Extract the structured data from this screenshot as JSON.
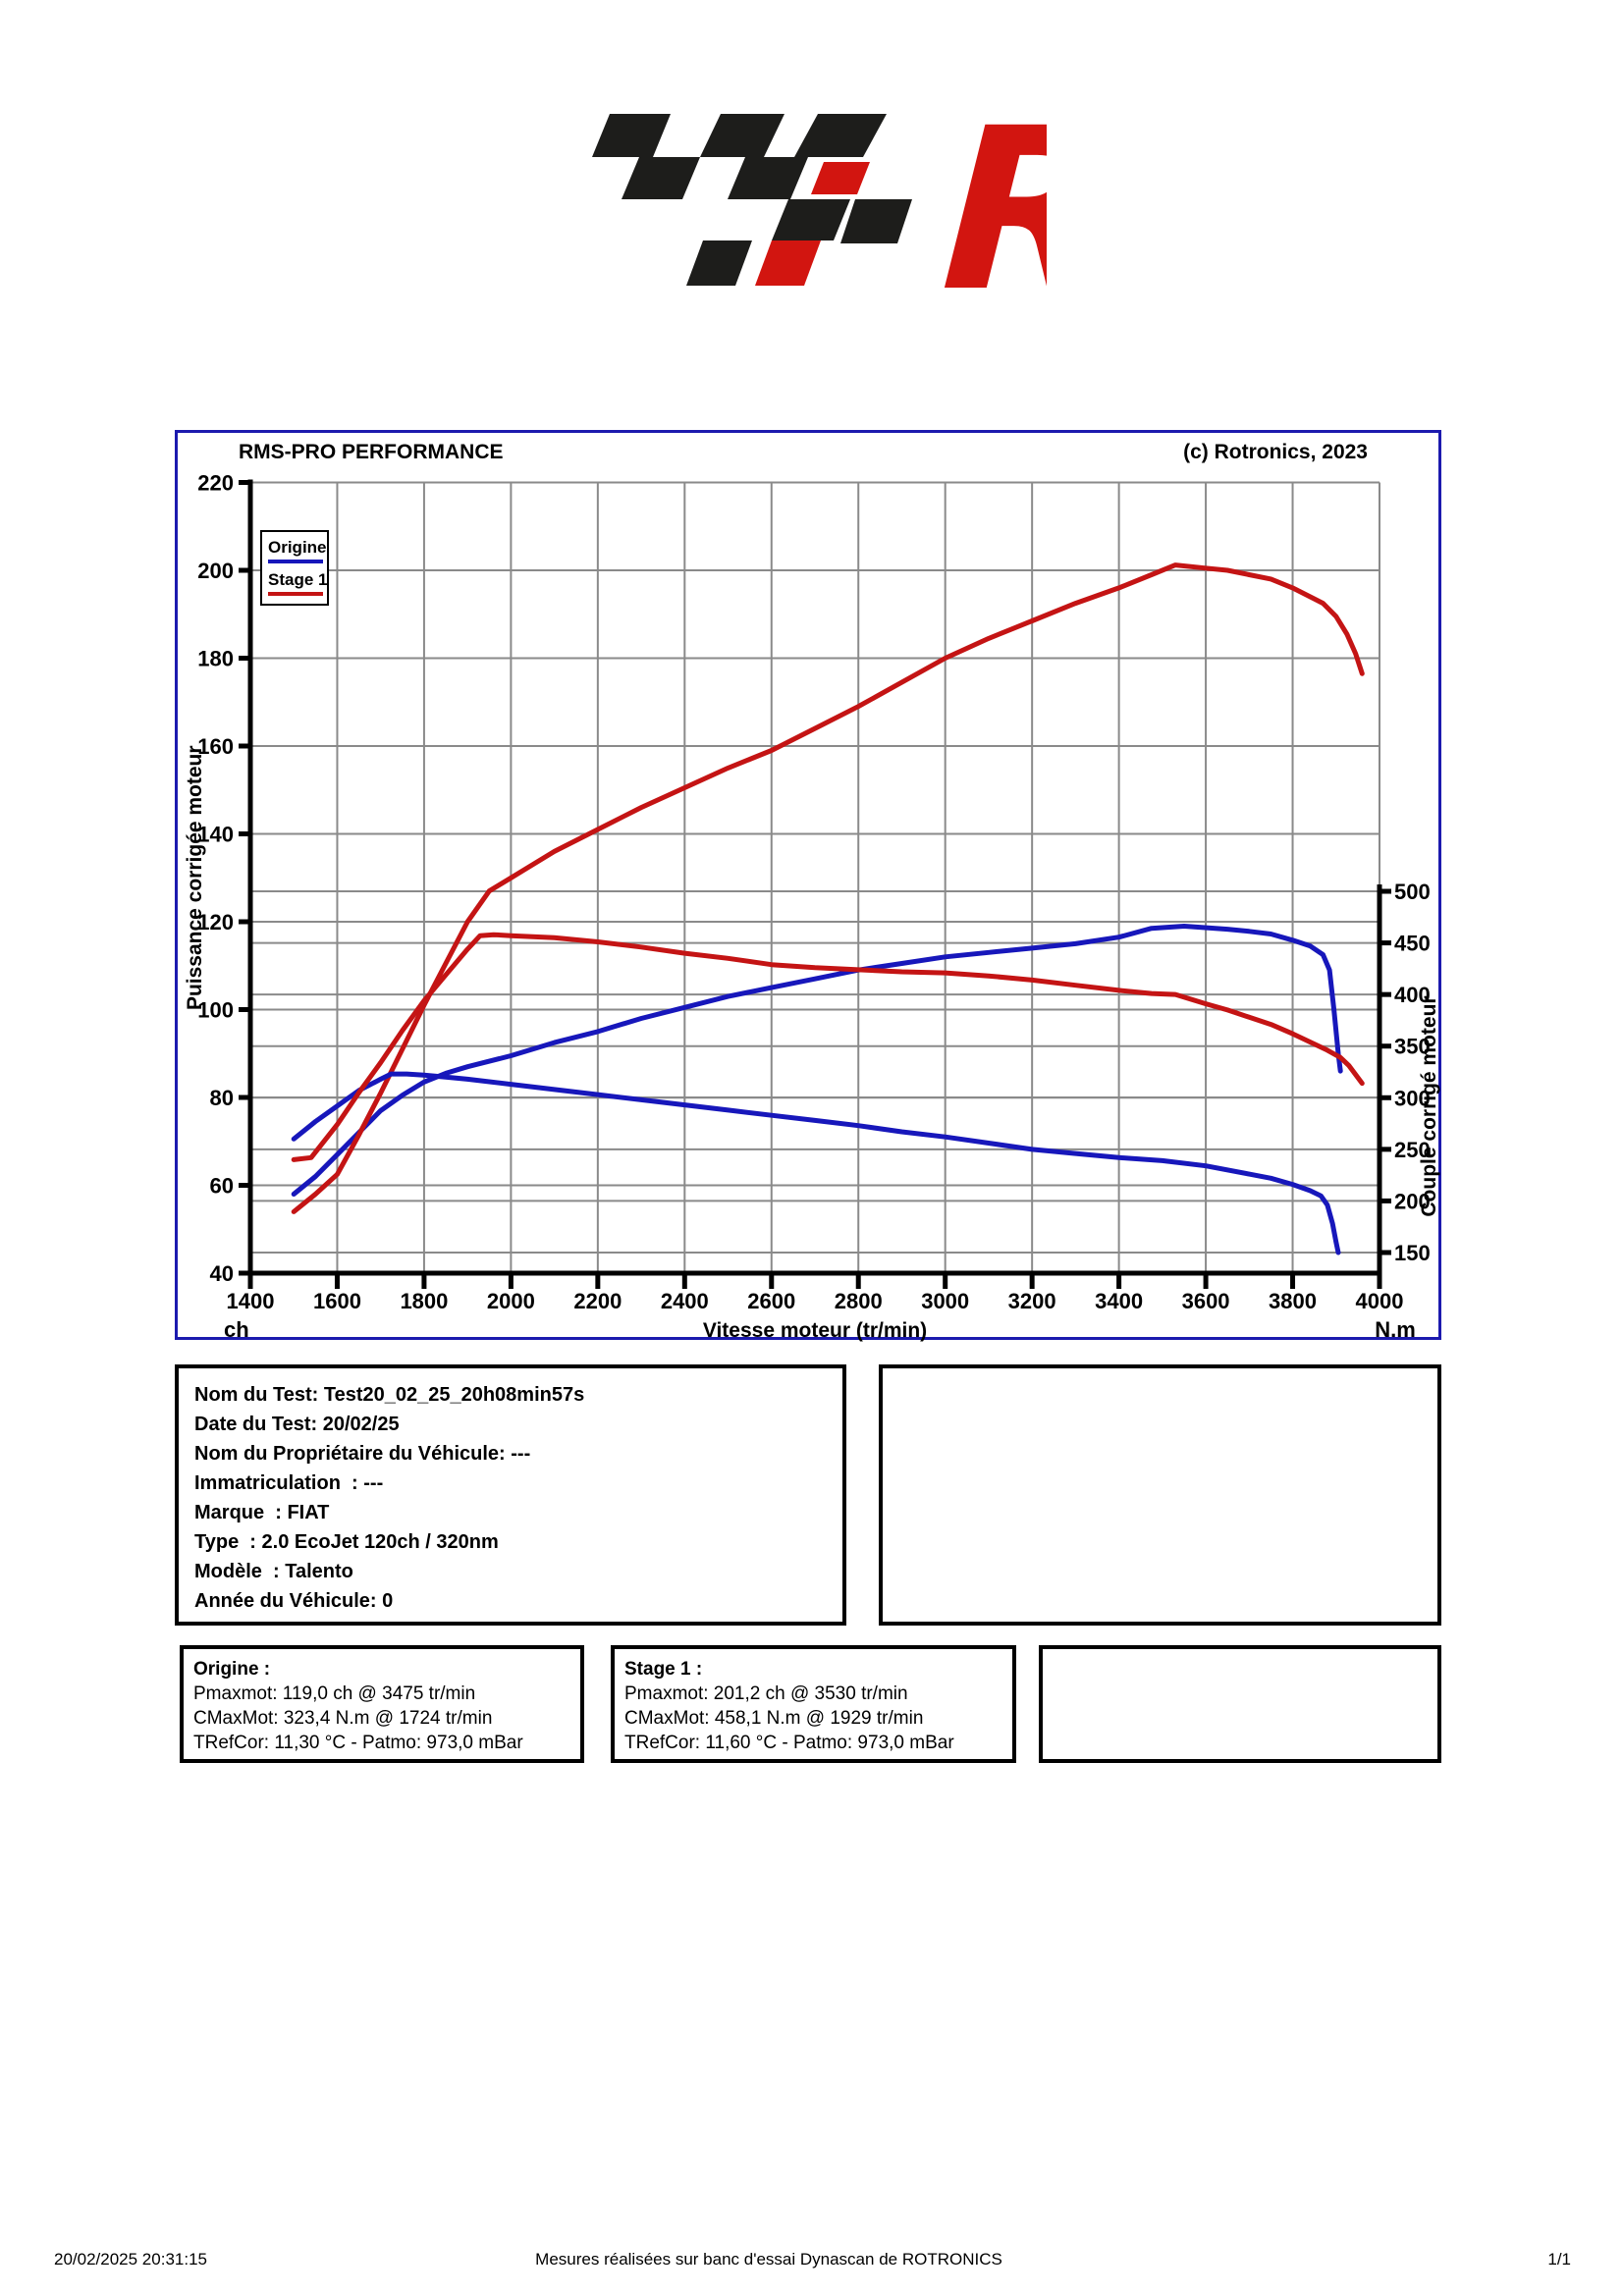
{
  "logo": {
    "name": "rotronics-checkered-flag-logo",
    "black": "#1d1d1b",
    "red": "#d21510"
  },
  "header": {
    "title": "RMS-PRO PERFORMANCE",
    "copyright": "(c) Rotronics, 2023"
  },
  "legend": {
    "entries": [
      {
        "label": "Origine",
        "color": "#1717bb"
      },
      {
        "label": "Stage 1",
        "color": "#c41414"
      }
    ]
  },
  "chart_data": {
    "type": "line",
    "title": "RMS-PRO PERFORMANCE",
    "grid": true,
    "legend_position": "top-left",
    "x": {
      "label": "Vitesse moteur (tr/min)",
      "unit_left_corner": "ch",
      "unit_right_corner": "N.m",
      "min": 1400,
      "max": 4000,
      "step": 200,
      "ticks": [
        1400,
        1600,
        1800,
        2000,
        2200,
        2400,
        2600,
        2800,
        3000,
        3200,
        3400,
        3600,
        3800,
        4000
      ]
    },
    "y_left": {
      "label": "Puissance corrigée moteur",
      "unit": "ch",
      "min": 40,
      "max": 220,
      "step": 20,
      "ticks": [
        220,
        200,
        180,
        160,
        140,
        120,
        100,
        80,
        60,
        40
      ]
    },
    "y_right": {
      "label": "Couple corrigé moteur",
      "unit": "N.m",
      "min": 150,
      "max": 500,
      "step": 50,
      "ticks": [
        500,
        450,
        400,
        350,
        300,
        250,
        200,
        150
      ]
    },
    "series": [
      {
        "name": "Origine - Puissance (ch)",
        "axis": "left",
        "color": "#1717bb",
        "points": [
          [
            1500,
            58
          ],
          [
            1550,
            62
          ],
          [
            1600,
            67
          ],
          [
            1650,
            72
          ],
          [
            1700,
            77
          ],
          [
            1750,
            80.5
          ],
          [
            1800,
            83.5
          ],
          [
            1850,
            85.5
          ],
          [
            1900,
            87
          ],
          [
            2000,
            89.5
          ],
          [
            2100,
            92.5
          ],
          [
            2200,
            95
          ],
          [
            2300,
            98
          ],
          [
            2400,
            100.5
          ],
          [
            2500,
            103
          ],
          [
            2600,
            105
          ],
          [
            2700,
            107
          ],
          [
            2800,
            109
          ],
          [
            2900,
            110.5
          ],
          [
            3000,
            112
          ],
          [
            3100,
            113
          ],
          [
            3200,
            114
          ],
          [
            3300,
            115
          ],
          [
            3400,
            116.5
          ],
          [
            3475,
            118.5
          ],
          [
            3550,
            119
          ],
          [
            3650,
            118.3
          ],
          [
            3700,
            117.8
          ],
          [
            3750,
            117.2
          ],
          [
            3800,
            115.8
          ],
          [
            3840,
            114.5
          ],
          [
            3870,
            112.5
          ],
          [
            3885,
            109
          ],
          [
            3895,
            100
          ],
          [
            3905,
            90
          ],
          [
            3910,
            86
          ]
        ]
      },
      {
        "name": "Stage 1 - Puissance (ch)",
        "axis": "left",
        "color": "#c41414",
        "points": [
          [
            1500,
            54
          ],
          [
            1550,
            58
          ],
          [
            1600,
            62.5
          ],
          [
            1650,
            71.5
          ],
          [
            1700,
            81
          ],
          [
            1750,
            91
          ],
          [
            1800,
            101
          ],
          [
            1850,
            110.5
          ],
          [
            1900,
            120
          ],
          [
            1950,
            127
          ],
          [
            2000,
            130
          ],
          [
            2100,
            136
          ],
          [
            2200,
            141
          ],
          [
            2300,
            146
          ],
          [
            2400,
            150.5
          ],
          [
            2500,
            155
          ],
          [
            2600,
            159
          ],
          [
            2700,
            164
          ],
          [
            2800,
            169
          ],
          [
            2900,
            174.5
          ],
          [
            3000,
            180
          ],
          [
            3100,
            184.5
          ],
          [
            3200,
            188.5
          ],
          [
            3300,
            192.5
          ],
          [
            3400,
            196
          ],
          [
            3475,
            199
          ],
          [
            3530,
            201.2
          ],
          [
            3600,
            200.5
          ],
          [
            3650,
            200
          ],
          [
            3700,
            199
          ],
          [
            3750,
            198
          ],
          [
            3800,
            196
          ],
          [
            3850,
            193.5
          ],
          [
            3870,
            192.5
          ],
          [
            3900,
            189.5
          ],
          [
            3925,
            185.5
          ],
          [
            3945,
            181
          ],
          [
            3960,
            176.5
          ]
        ]
      },
      {
        "name": "Origine - Couple (N.m)",
        "axis": "right",
        "color": "#1717bb",
        "points": [
          [
            1500,
            260
          ],
          [
            1550,
            277
          ],
          [
            1600,
            292
          ],
          [
            1650,
            307
          ],
          [
            1700,
            318
          ],
          [
            1724,
            323
          ],
          [
            1760,
            323
          ],
          [
            1800,
            322
          ],
          [
            1850,
            320
          ],
          [
            1900,
            318
          ],
          [
            2000,
            313
          ],
          [
            2100,
            308
          ],
          [
            2200,
            303
          ],
          [
            2300,
            298
          ],
          [
            2400,
            293
          ],
          [
            2500,
            288
          ],
          [
            2600,
            283
          ],
          [
            2700,
            278
          ],
          [
            2800,
            273
          ],
          [
            2900,
            267
          ],
          [
            3000,
            262
          ],
          [
            3100,
            256
          ],
          [
            3200,
            250
          ],
          [
            3300,
            246
          ],
          [
            3400,
            242
          ],
          [
            3500,
            239
          ],
          [
            3600,
            234
          ],
          [
            3700,
            226
          ],
          [
            3750,
            222
          ],
          [
            3800,
            216
          ],
          [
            3840,
            210
          ],
          [
            3865,
            205
          ],
          [
            3880,
            196
          ],
          [
            3892,
            178
          ],
          [
            3900,
            160
          ],
          [
            3905,
            150
          ]
        ]
      },
      {
        "name": "Stage 1 - Couple (N.m)",
        "axis": "right",
        "color": "#c41414",
        "points": [
          [
            1500,
            240
          ],
          [
            1540,
            242
          ],
          [
            1600,
            274
          ],
          [
            1650,
            305
          ],
          [
            1700,
            334
          ],
          [
            1750,
            365
          ],
          [
            1800,
            394
          ],
          [
            1850,
            419
          ],
          [
            1900,
            444
          ],
          [
            1929,
            457
          ],
          [
            1960,
            458
          ],
          [
            2000,
            457
          ],
          [
            2050,
            456
          ],
          [
            2100,
            455
          ],
          [
            2200,
            451
          ],
          [
            2300,
            446
          ],
          [
            2400,
            440
          ],
          [
            2500,
            435
          ],
          [
            2600,
            429
          ],
          [
            2700,
            426
          ],
          [
            2800,
            424
          ],
          [
            2900,
            422
          ],
          [
            3000,
            421
          ],
          [
            3100,
            418
          ],
          [
            3200,
            414
          ],
          [
            3300,
            409
          ],
          [
            3400,
            404
          ],
          [
            3475,
            401
          ],
          [
            3530,
            400
          ],
          [
            3600,
            391
          ],
          [
            3650,
            385
          ],
          [
            3700,
            378
          ],
          [
            3750,
            371
          ],
          [
            3800,
            362
          ],
          [
            3850,
            352
          ],
          [
            3880,
            346
          ],
          [
            3910,
            339
          ],
          [
            3930,
            331
          ],
          [
            3960,
            314
          ]
        ]
      }
    ],
    "annotations": {
      "origine_pmax": "119,0 ch @ 3475 tr/min",
      "origine_cmax": "323,4 N.m @ 1724 tr/min",
      "stage1_pmax": "201,2 ch @ 3530 tr/min",
      "stage1_cmax": "458,1 N.m @ 1929 tr/min"
    }
  },
  "test_info": {
    "lines": [
      "Nom du Test: Test20_02_25_20h08min57s",
      "Date du Test: 20/02/25",
      "Nom du Propriétaire du Véhicule: ---",
      "Immatriculation  : ---",
      "Marque  : FIAT",
      "Type  : 2.0 EcoJet 120ch / 320nm",
      "Modèle  : Talento",
      "Année du Véhicule: 0"
    ]
  },
  "boxes": {
    "origine": {
      "title": "Origine :",
      "lines": [
        "Pmaxmot: 119,0 ch @ 3475 tr/min",
        "CMaxMot: 323,4 N.m @ 1724 tr/min",
        "TRefCor: 11,30 °C - Patmo: 973,0 mBar"
      ]
    },
    "stage1": {
      "title": "Stage 1 :",
      "lines": [
        "Pmaxmot: 201,2 ch @ 3530 tr/min",
        "CMaxMot: 458,1 N.m @ 1929 tr/min",
        "TRefCor: 11,60 °C - Patmo: 973,0 mBar"
      ]
    }
  },
  "footer": {
    "datetime": "20/02/2025 20:31:15",
    "center": "Mesures réalisées sur banc d'essai Dynascan de ROTRONICS",
    "page": "1/1"
  },
  "colors": {
    "chart_border": "#1c1aae",
    "grid": "#8a8a8a",
    "axis": "#000000",
    "curve_blue": "#1717bb",
    "curve_red": "#c41414"
  }
}
